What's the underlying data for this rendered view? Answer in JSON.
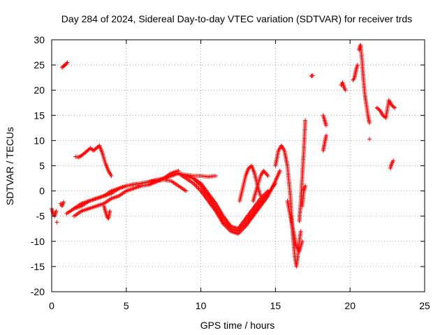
{
  "chart_data": {
    "type": "scatter",
    "title": "Day 284 of 2024, Sidereal Day-to-day VTEC variation (SDTVAR) for receiver trds",
    "xlabel": "GPS time / hours",
    "ylabel": "SDTVAR / TECUs",
    "xlim": [
      0,
      25
    ],
    "ylim": [
      -20,
      30
    ],
    "xticks": [
      0,
      5,
      10,
      15,
      20,
      25
    ],
    "yticks": [
      -20,
      -15,
      -10,
      -5,
      0,
      5,
      10,
      15,
      20,
      25,
      30
    ],
    "grid": true,
    "marker": "+",
    "color": "#ff0000",
    "series": [
      {
        "name": "SDTVAR",
        "tracks": [
          {
            "x": [
              0.0,
              0.1,
              0.2,
              0.3
            ],
            "y": [
              -3.5,
              -4.5,
              -5.0,
              -4.0
            ]
          },
          {
            "x": [
              0.35
            ],
            "y": [
              -6.2
            ]
          },
          {
            "x": [
              0.7,
              0.8,
              0.9,
              1.0,
              1.05
            ],
            "y": [
              24.5,
              24.8,
              25.0,
              25.3,
              25.5
            ]
          },
          {
            "x": [
              0.6,
              0.7,
              0.8
            ],
            "y": [
              -2.5,
              -3.0,
              -2.2
            ]
          },
          {
            "x": [
              1.5,
              2.0,
              2.5,
              3.0,
              3.5,
              4.0,
              4.5,
              5.0,
              5.5,
              6.0,
              6.5,
              7.0,
              7.5,
              8.0,
              8.5,
              9.0,
              9.5,
              10.0,
              10.5,
              11.0
            ],
            "y": [
              -3.5,
              -3.0,
              -2.0,
              -1.5,
              -1.0,
              0.0,
              0.5,
              1.0,
              1.3,
              1.5,
              1.8,
              2.2,
              2.5,
              3.0,
              3.5,
              3.2,
              3.0,
              3.0,
              2.8,
              3.0
            ]
          },
          {
            "x": [
              1.0,
              1.5,
              2.0,
              2.5,
              3.0,
              3.5,
              4.0,
              4.5,
              5.0,
              5.5,
              6.0,
              6.5,
              7.0,
              7.5,
              8.0,
              8.5,
              9.0
            ],
            "y": [
              -4.5,
              -3.5,
              -2.5,
              -2.0,
              -1.5,
              -1.0,
              -0.5,
              0.5,
              1.0,
              1.3,
              1.5,
              1.8,
              2.0,
              2.2,
              2.0,
              1.0,
              0.0
            ]
          },
          {
            "x": [
              1.5,
              2.0,
              2.5,
              3.0,
              3.5,
              4.0,
              4.5,
              5.0,
              5.5,
              6.0,
              6.5,
              7.0,
              7.5,
              8.0,
              8.5
            ],
            "y": [
              -5.0,
              -4.0,
              -3.5,
              -3.0,
              -2.5,
              -1.5,
              -1.0,
              0.0,
              0.5,
              1.0,
              1.2,
              1.8,
              2.5,
              3.5,
              4.0
            ]
          },
          {
            "x": [
              3.5,
              3.6,
              3.7,
              3.8,
              3.9
            ],
            "y": [
              -3.0,
              -4.0,
              -5.0,
              -5.5,
              -4.0
            ]
          },
          {
            "x": [
              1.6,
              1.8,
              2.0,
              2.2,
              2.4,
              2.6,
              2.8,
              3.0,
              3.2,
              3.4,
              3.6,
              3.8,
              4.0
            ],
            "y": [
              6.8,
              6.7,
              7.0,
              7.5,
              8.0,
              8.5,
              8.0,
              8.5,
              9.0,
              7.5,
              5.5,
              4.0,
              3.0
            ]
          },
          {
            "x": [
              7.5,
              8.0,
              8.5,
              9.0,
              9.5,
              10.0,
              10.5,
              11.0,
              11.5,
              12.0,
              12.5,
              13.0,
              13.5,
              14.0,
              14.5,
              15.0,
              15.3
            ],
            "y": [
              2.5,
              3.0,
              3.5,
              2.5,
              1.5,
              0.0,
              -2.0,
              -4.0,
              -6.5,
              -8.0,
              -8.5,
              -7.0,
              -5.0,
              -3.0,
              -1.0,
              2.0,
              4.0
            ]
          },
          {
            "x": [
              9.0,
              9.5,
              10.0,
              10.5,
              11.0,
              11.5,
              12.0,
              12.5,
              13.0,
              13.5,
              14.0,
              14.5,
              15.0
            ],
            "y": [
              3.0,
              2.5,
              1.0,
              -1.0,
              -3.5,
              -6.0,
              -7.5,
              -8.0,
              -6.5,
              -4.5,
              -2.5,
              -0.5,
              1.5
            ]
          },
          {
            "x": [
              9.5,
              10.0,
              10.5,
              11.0,
              11.5,
              12.0,
              12.5,
              13.0,
              13.5,
              14.0,
              14.5
            ],
            "y": [
              2.5,
              1.5,
              -0.5,
              -2.5,
              -5.0,
              -7.0,
              -7.5,
              -5.5,
              -3.5,
              -1.5,
              0.0
            ]
          },
          {
            "x": [
              12.6,
              12.8,
              13.0,
              13.2,
              13.4,
              13.6,
              13.8,
              14.0
            ],
            "y": [
              -2.0,
              0.5,
              3.0,
              4.5,
              5.0,
              3.5,
              1.0,
              -1.0
            ]
          },
          {
            "x": [
              13.5,
              13.8,
              14.0,
              14.2,
              14.5
            ],
            "y": [
              -2.0,
              1.0,
              3.0,
              4.0,
              3.0
            ]
          },
          {
            "x": [
              15.0,
              15.2,
              15.4,
              15.6,
              15.8,
              16.0,
              16.1,
              16.2,
              16.3,
              16.4,
              16.5,
              16.6,
              16.7
            ],
            "y": [
              5.0,
              8.0,
              9.0,
              8.0,
              5.0,
              -1.0,
              -6.0,
              -10.0,
              -13.0,
              -15.0,
              -13.0,
              -10.0,
              -8.0
            ]
          },
          {
            "x": [
              15.8,
              16.0,
              16.2,
              16.4,
              16.6,
              16.8
            ],
            "y": [
              -2.0,
              -5.0,
              -8.0,
              -11.0,
              -12.0,
              -10.0
            ]
          },
          {
            "x": [
              16.6,
              16.7,
              16.8,
              16.9,
              17.0
            ],
            "y": [
              -6.0,
              -2.0,
              3.0,
              8.0,
              14.0
            ]
          },
          {
            "x": [
              16.8,
              16.9,
              17.0
            ],
            "y": [
              -3.0,
              0.0,
              1.0
            ]
          },
          {
            "x": [
              17.4,
              17.5
            ],
            "y": [
              22.8,
              22.9
            ]
          },
          {
            "x": [
              18.2,
              18.3,
              18.4
            ],
            "y": [
              15.0,
              14.0,
              13.0
            ]
          },
          {
            "x": [
              18.2,
              18.3,
              18.4
            ],
            "y": [
              8.0,
              9.5,
              11.0
            ]
          },
          {
            "x": [
              19.4,
              19.5,
              19.6,
              19.7
            ],
            "y": [
              21.0,
              21.5,
              20.5,
              20.0
            ]
          },
          {
            "x": [
              20.2,
              20.3,
              20.4,
              20.5
            ],
            "y": [
              22.0,
              22.5,
              24.0,
              25.0
            ]
          },
          {
            "x": [
              20.6,
              20.7,
              20.8,
              20.9,
              21.0,
              21.1,
              21.2,
              21.3
            ],
            "y": [
              28.0,
              29.0,
              26.0,
              22.0,
              19.0,
              17.0,
              15.0,
              13.5
            ]
          },
          {
            "x": [
              21.3
            ],
            "y": [
              10.3
            ]
          },
          {
            "x": [
              21.8,
              22.0,
              22.2,
              22.4,
              22.6,
              22.8,
              23.0
            ],
            "y": [
              16.5,
              16.0,
              15.0,
              14.5,
              18.0,
              17.0,
              16.5
            ]
          },
          {
            "x": [
              22.7,
              22.8,
              22.9
            ],
            "y": [
              4.5,
              5.5,
              6.0
            ]
          }
        ]
      }
    ]
  }
}
